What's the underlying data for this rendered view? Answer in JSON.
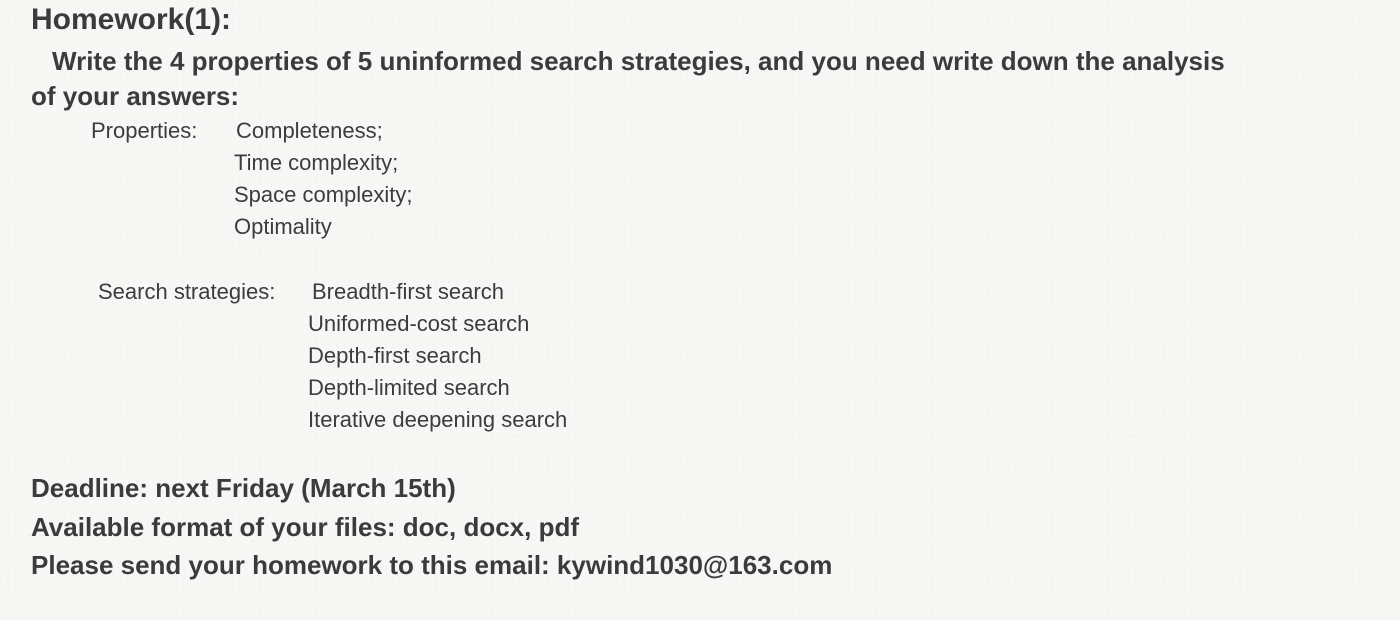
{
  "document": {
    "title": "Homework(1):",
    "prompt_line1": "Write the 4 properties of 5 uninformed search strategies, and you need write down the analysis",
    "prompt_line2": "of your answers:",
    "properties": {
      "label": "Properties:",
      "items": [
        "Completeness;",
        "Time complexity;",
        "Space complexity;",
        "Optimality"
      ]
    },
    "strategies": {
      "label": "Search strategies:",
      "items": [
        "Breadth-first search",
        "Uniformed-cost search",
        "Depth-first search",
        "Depth-limited search",
        "Iterative deepening search"
      ]
    },
    "deadline": "Deadline: next Friday (March 15th)",
    "format": "Available format of your files: doc, docx, pdf",
    "email_line": "Please send your homework to this email: kywind1030@163.com"
  }
}
